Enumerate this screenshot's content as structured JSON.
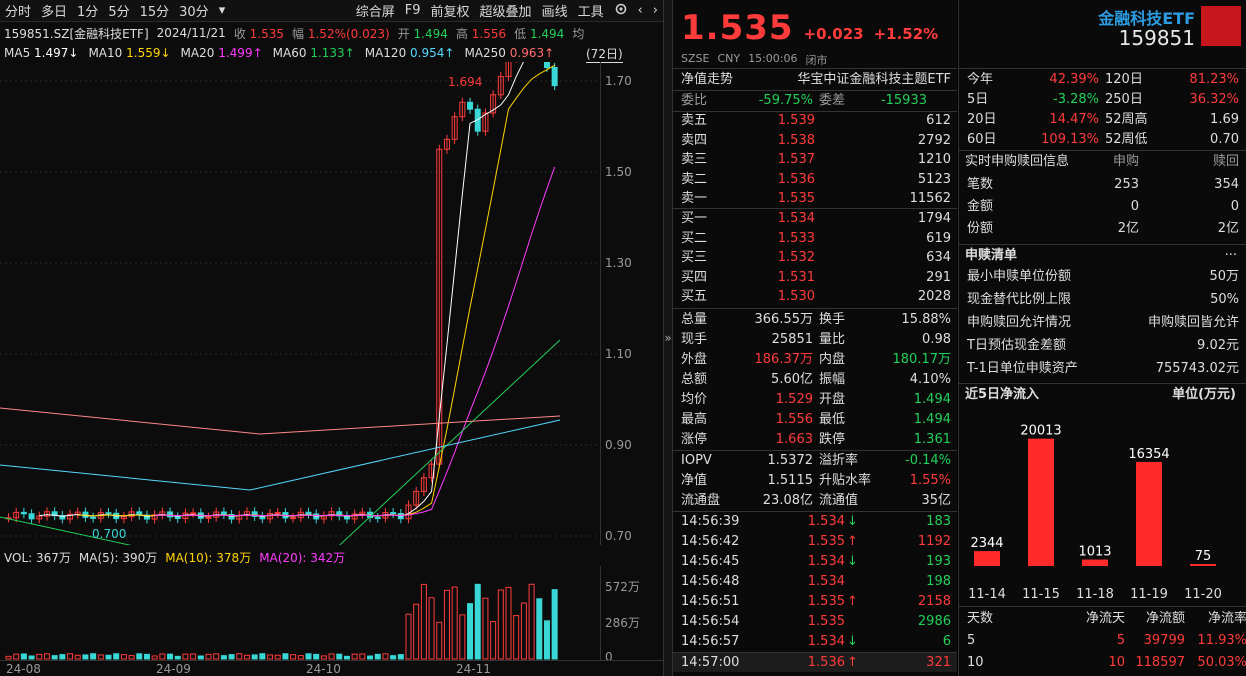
{
  "toolbar": {
    "items": [
      "分时",
      "多日",
      "1分",
      "5分",
      "15分",
      "30分"
    ],
    "more": "▾",
    "right_items": [
      "综合屏",
      "F9",
      "前复权",
      "超级叠加",
      "画线",
      "工具"
    ]
  },
  "info": {
    "code_name": "159851.SZ[金融科技ETF]",
    "date": "2024/11/21",
    "close_label": "收",
    "close": "1.535",
    "range_label": "幅",
    "range": "1.52%(0.023)",
    "open_label": "开",
    "open": "1.494",
    "high_label": "高",
    "high": "1.556",
    "low_label": "低",
    "low": "1.494",
    "avg_label": "均"
  },
  "ma": [
    {
      "label": "MA5",
      "value": "1.497↓",
      "color": "#ffffff"
    },
    {
      "label": "MA10",
      "value": "1.559↓",
      "color": "#ffd400"
    },
    {
      "label": "MA20",
      "value": "1.499↑",
      "color": "#ff3cff"
    },
    {
      "label": "MA60",
      "value": "1.133↑",
      "color": "#22d05a"
    },
    {
      "label": "MA120",
      "value": "0.954↑",
      "color": "#56d8ff"
    },
    {
      "label": "MA250",
      "value": "0.963↑",
      "color": "#ff6f6f"
    }
  ],
  "period_tag": "(72日)",
  "kline_axis": [
    "1.70",
    "1.50",
    "1.30",
    "1.10",
    "0.90",
    "0.70"
  ],
  "max_label": "1.694",
  "min_label": "0.700",
  "vol": {
    "label": "VOL: 367万",
    "ma5": "MA(5): 390万",
    "ma10": "MA(10): 378万",
    "ma20": "MA(20): 342万"
  },
  "vol_axis": [
    "572万",
    "286万",
    "0"
  ],
  "dates": [
    "24-08",
    "24-09",
    "24-10",
    "24-11"
  ],
  "quote": {
    "price": "1.535",
    "change": "+0.023",
    "pct": "+1.52%",
    "market": "SZSE",
    "currency": "CNY",
    "time": "15:00:06",
    "status": "闭市",
    "fund_name": "金融科技ETF",
    "fund_code": "159851"
  },
  "nav_row": {
    "label": "净值走势",
    "name": "华宝中证金融科技主题ETF"
  },
  "weibi": {
    "label": "委比",
    "value": "-59.75%",
    "label2": "委差",
    "value2": "-15933"
  },
  "asks": [
    {
      "label": "卖五",
      "price": "1.539",
      "vol": "612"
    },
    {
      "label": "卖四",
      "price": "1.538",
      "vol": "2792"
    },
    {
      "label": "卖三",
      "price": "1.537",
      "vol": "1210"
    },
    {
      "label": "卖二",
      "price": "1.536",
      "vol": "5123"
    },
    {
      "label": "卖一",
      "price": "1.535",
      "vol": "11562"
    }
  ],
  "bids": [
    {
      "label": "买一",
      "price": "1.534",
      "vol": "1794"
    },
    {
      "label": "买二",
      "price": "1.533",
      "vol": "619"
    },
    {
      "label": "买三",
      "price": "1.532",
      "vol": "634"
    },
    {
      "label": "买四",
      "price": "1.531",
      "vol": "291"
    },
    {
      "label": "买五",
      "price": "1.530",
      "vol": "2028"
    }
  ],
  "stats": [
    [
      "总量",
      "366.55万",
      "wht",
      "换手",
      "15.88%",
      "wht"
    ],
    [
      "现手",
      "25851",
      "wht",
      "量比",
      "0.98",
      "wht"
    ],
    [
      "外盘",
      "186.37万",
      "red",
      "内盘",
      "180.17万",
      "grn"
    ],
    [
      "总额",
      "5.60亿",
      "wht",
      "振幅",
      "4.10%",
      "wht"
    ],
    [
      "均价",
      "1.529",
      "red",
      "开盘",
      "1.494",
      "grn"
    ],
    [
      "最高",
      "1.556",
      "red",
      "最低",
      "1.494",
      "grn"
    ],
    [
      "涨停",
      "1.663",
      "red",
      "跌停",
      "1.361",
      "grn"
    ]
  ],
  "iopv": [
    [
      "IOPV",
      "1.5372",
      "wht",
      "溢折率",
      "-0.14%",
      "grn"
    ],
    [
      "净值",
      "1.5115",
      "wht",
      "升贴水率",
      "1.55%",
      "red"
    ],
    [
      "流通盘",
      "23.08亿",
      "wht",
      "流通值",
      "35亿",
      "wht"
    ]
  ],
  "ticks": [
    {
      "time": "14:56:39",
      "price": "1.534",
      "dir": "↓",
      "vol": "183",
      "c": "grn"
    },
    {
      "time": "14:56:42",
      "price": "1.535",
      "dir": "↑",
      "vol": "1192",
      "c": "red"
    },
    {
      "time": "14:56:45",
      "price": "1.534",
      "dir": "↓",
      "vol": "193",
      "c": "grn"
    },
    {
      "time": "14:56:48",
      "price": "1.534",
      "dir": "",
      "vol": "198",
      "c": "grn"
    },
    {
      "time": "14:56:51",
      "price": "1.535",
      "dir": "↑",
      "vol": "2158",
      "c": "red"
    },
    {
      "time": "14:56:54",
      "price": "1.535",
      "dir": "",
      "vol": "2986",
      "c": "grn"
    },
    {
      "time": "14:56:57",
      "price": "1.534",
      "dir": "↓",
      "vol": "6",
      "c": "grn"
    },
    {
      "time": "14:57:00",
      "price": "1.536",
      "dir": "↑",
      "vol": "321",
      "c": "red"
    }
  ],
  "perf": [
    [
      "今年",
      "42.39%",
      "120日",
      "81.23%"
    ],
    [
      "5日",
      "-3.28%",
      "250日",
      "36.32%"
    ],
    [
      "20日",
      "14.47%",
      "52周高",
      "1.69"
    ],
    [
      "60日",
      "109.13%",
      "52周低",
      "0.70"
    ]
  ],
  "subscribe": {
    "title": "实时申购赎回信息",
    "col1": "申购",
    "col2": "赎回",
    "rows": [
      [
        "笔数",
        "253",
        "354"
      ],
      [
        "金额",
        "0",
        "0"
      ],
      [
        "份额",
        "2亿",
        "2亿"
      ]
    ]
  },
  "list": {
    "title": "申赎清单",
    "more": "···",
    "rows": [
      [
        "最小申赎单位份额",
        "50万"
      ],
      [
        "现金替代比例上限",
        "50%"
      ],
      [
        "申购赎回允许情况",
        "申购赎回皆允许"
      ],
      [
        "T日预估现金差额",
        "9.02元"
      ],
      [
        "T-1日单位申赎资产",
        "755743.02元"
      ]
    ]
  },
  "inflow": {
    "title": "近5日净流入",
    "unit": "单位(万元)",
    "chart_data": {
      "type": "bar",
      "categories": [
        "11-14",
        "11-15",
        "11-18",
        "11-19",
        "11-20"
      ],
      "values": [
        2344,
        20013,
        1013,
        16354,
        75
      ],
      "title": "近5日净流入",
      "ylabel": "单位(万元)"
    }
  },
  "summary": {
    "headers": [
      "天数",
      "净流天",
      "净流额",
      "净流率"
    ],
    "rows": [
      [
        "5",
        "5",
        "39799",
        "11.93%"
      ],
      [
        "10",
        "10",
        "118597",
        "50.03%"
      ]
    ]
  }
}
